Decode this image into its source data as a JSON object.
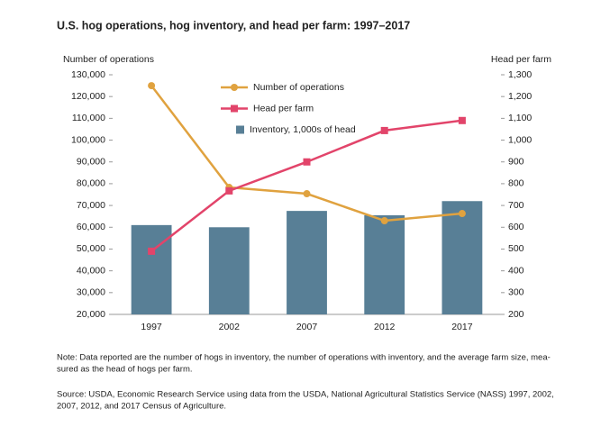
{
  "chart_data": {
    "type": "bar-line",
    "title": "U.S. hog operations, hog inventory, and head per farm: 1997–2017",
    "ylabel": "Number of operations",
    "y2label": "Head per farm",
    "categories": [
      "1997",
      "2002",
      "2007",
      "2012",
      "2017"
    ],
    "series": [
      {
        "name": "Inventory, 1,000s of head",
        "type": "bar",
        "color": "#587f96",
        "values": [
          61000,
          60000,
          67500,
          65500,
          72000
        ]
      },
      {
        "name": "Number of operations",
        "type": "line",
        "marker": "circle",
        "color": "#e0a23f",
        "values": [
          125000,
          78300,
          75400,
          63000,
          66300
        ]
      },
      {
        "name": "Head per farm",
        "type": "line",
        "marker": "square",
        "axis": "y2",
        "color": "#e2446a",
        "values": [
          490,
          767,
          900,
          1044,
          1090
        ]
      }
    ],
    "ylim": [
      20000,
      130000
    ],
    "yticks": [
      {
        "value": 20000,
        "label": "20,000"
      },
      {
        "value": 30000,
        "label": "30,000"
      },
      {
        "value": 40000,
        "label": "40,000"
      },
      {
        "value": 50000,
        "label": "50,000"
      },
      {
        "value": 60000,
        "label": "60,000"
      },
      {
        "value": 70000,
        "label": "70,000"
      },
      {
        "value": 80000,
        "label": "80,000"
      },
      {
        "value": 90000,
        "label": "90,000"
      },
      {
        "value": 100000,
        "label": "100,000"
      },
      {
        "value": 110000,
        "label": "110,000"
      },
      {
        "value": 120000,
        "label": "120,000"
      },
      {
        "value": 130000,
        "label": "130,000"
      }
    ],
    "y2lim": [
      200,
      1300
    ],
    "y2ticks": [
      200,
      300,
      400,
      500,
      600,
      700,
      800,
      900,
      {
        "value": 1000,
        "label": "1,000"
      },
      {
        "value": 1100,
        "label": "1,100"
      },
      {
        "value": 1200,
        "label": "1,200"
      },
      {
        "value": 1300,
        "label": "1,300"
      }
    ],
    "legend": "top",
    "note": [
      "Note: Data reported are the number of hogs in inventory, the number of operations with inventory, and the average farm size, mea-",
      "sured as the head of hogs per farm."
    ],
    "source": [
      "Source: USDA, Economic Research Service using data from the USDA, National Agricultural Statistics Service (NASS) 1997, 2002,",
      "2007, 2012, and 2017 Census of Agriculture."
    ]
  }
}
